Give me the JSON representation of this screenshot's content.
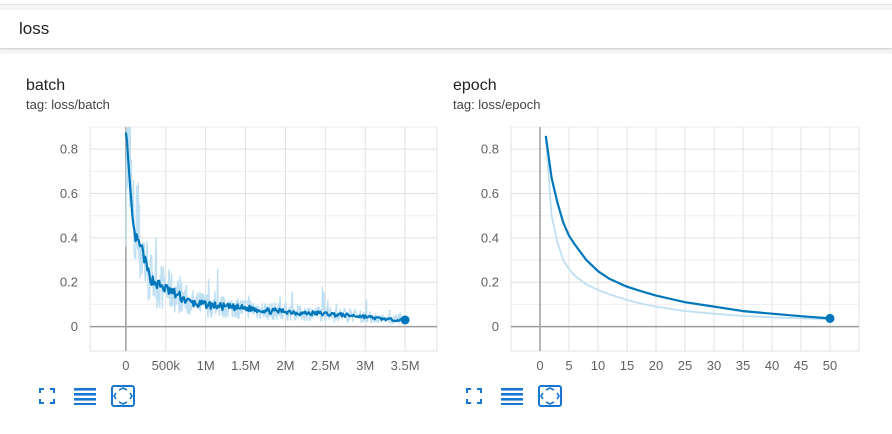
{
  "group": {
    "title": "loss"
  },
  "colors": {
    "series": "#0077bb",
    "series_raw": "#bfe0f2",
    "grid": "#e0e0e0",
    "axis": "#9e9e9e"
  },
  "cards": {
    "batch": {
      "title": "batch",
      "tag": "tag: loss/batch",
      "toolbar": [
        "fullscreen-icon",
        "lines-icon",
        "fit-domain-icon"
      ]
    },
    "epoch": {
      "title": "epoch",
      "tag": "tag: loss/epoch",
      "toolbar": [
        "fullscreen-icon",
        "lines-icon",
        "fit-domain-icon"
      ]
    }
  },
  "chart_data": [
    {
      "type": "line",
      "title": "batch",
      "xlim": [
        -450000,
        3900000
      ],
      "ylim": [
        -0.11,
        0.9
      ],
      "x_ticks": [
        0,
        500000,
        1000000,
        1500000,
        2000000,
        2500000,
        3000000,
        3500000
      ],
      "x_tick_labels": [
        "0",
        "500k",
        "1M",
        "1.5M",
        "2M",
        "2.5M",
        "3M",
        "3.5M"
      ],
      "y_ticks": [
        0,
        0.2,
        0.4,
        0.6,
        0.8
      ],
      "y_tick_labels": [
        "0",
        "0.2",
        "0.4",
        "0.6",
        "0.8"
      ],
      "grid": true,
      "series": [
        {
          "smoothed": true,
          "x": [
            0,
            50000,
            100000,
            150000,
            200000,
            250000,
            300000,
            400000,
            500000,
            600000,
            700000,
            800000,
            900000,
            1000000,
            1200000,
            1400000,
            1600000,
            1800000,
            2000000,
            2200000,
            2400000,
            2600000,
            2800000,
            3000000,
            3200000,
            3400000,
            3500000
          ],
          "y": [
            0.9,
            0.62,
            0.42,
            0.38,
            0.35,
            0.28,
            0.22,
            0.19,
            0.17,
            0.15,
            0.13,
            0.11,
            0.1,
            0.1,
            0.09,
            0.085,
            0.08,
            0.07,
            0.07,
            0.06,
            0.06,
            0.055,
            0.05,
            0.045,
            0.035,
            0.03,
            0.03
          ]
        }
      ]
    },
    {
      "type": "line",
      "title": "epoch",
      "xlim": [
        -5,
        55
      ],
      "ylim": [
        -0.11,
        0.9
      ],
      "x_ticks": [
        0,
        5,
        10,
        15,
        20,
        25,
        30,
        35,
        40,
        45,
        50
      ],
      "x_tick_labels": [
        "0",
        "5",
        "10",
        "15",
        "20",
        "25",
        "30",
        "35",
        "40",
        "45",
        "50"
      ],
      "y_ticks": [
        0,
        0.2,
        0.4,
        0.6,
        0.8
      ],
      "y_tick_labels": [
        "0",
        "0.2",
        "0.4",
        "0.6",
        "0.8"
      ],
      "grid": true,
      "series": [
        {
          "smoothed": true,
          "x": [
            1,
            2,
            3,
            4,
            5,
            6,
            8,
            10,
            12,
            15,
            18,
            20,
            25,
            30,
            35,
            40,
            45,
            50
          ],
          "y": [
            0.86,
            0.67,
            0.56,
            0.47,
            0.41,
            0.37,
            0.3,
            0.25,
            0.215,
            0.18,
            0.155,
            0.14,
            0.11,
            0.09,
            0.07,
            0.058,
            0.047,
            0.037
          ]
        },
        {
          "smoothed": false,
          "x": [
            1,
            2,
            3,
            4,
            5,
            6,
            8,
            10,
            12,
            15,
            18,
            20,
            25,
            30,
            35,
            40,
            45,
            50
          ],
          "y": [
            0.86,
            0.5,
            0.38,
            0.3,
            0.26,
            0.23,
            0.19,
            0.165,
            0.145,
            0.12,
            0.1,
            0.09,
            0.07,
            0.058,
            0.048,
            0.042,
            0.037,
            0.033
          ]
        }
      ]
    }
  ]
}
